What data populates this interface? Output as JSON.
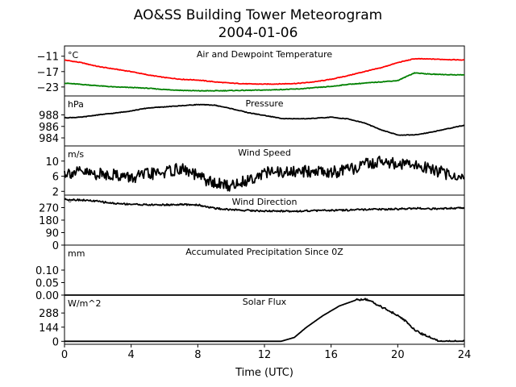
{
  "figure": {
    "title_line1": "AO&SS Building Tower Meteorogram",
    "title_line2": "2004-01-06",
    "xlabel": "Time (UTC)",
    "xticks": [
      "0",
      "4",
      "8",
      "12",
      "16",
      "20",
      "24"
    ]
  },
  "chart_data": [
    {
      "type": "line",
      "title": "Air and Dewpoint Temperature",
      "unit": "°C",
      "yticks": [
        "−11",
        "−17",
        "−23"
      ],
      "ylim": [
        -26.5,
        -7
      ],
      "x": [
        0,
        1,
        2,
        3,
        4,
        5,
        6,
        7,
        8,
        9,
        10,
        11,
        12,
        13,
        14,
        15,
        16,
        17,
        18,
        19,
        20,
        21,
        22,
        23,
        24
      ],
      "series": [
        {
          "color": "#ff0000",
          "values": [
            -12.5,
            -13.5,
            -15,
            -16,
            -17,
            -18.3,
            -19.3,
            -20,
            -20.3,
            -21,
            -21.5,
            -21.8,
            -21.9,
            -21.8,
            -21.6,
            -21,
            -20,
            -18.6,
            -17,
            -15.5,
            -13.5,
            -12,
            -12.1,
            -12.3,
            -12.5
          ]
        },
        {
          "color": "#008000",
          "values": [
            -21.5,
            -22,
            -22.5,
            -23,
            -23.2,
            -23.5,
            -24,
            -24.3,
            -24.5,
            -24.5,
            -24.4,
            -24.3,
            -24.2,
            -24,
            -23.8,
            -23.3,
            -22.8,
            -22,
            -21.5,
            -21,
            -20.5,
            -17.5,
            -18,
            -18.2,
            -18.3
          ]
        }
      ]
    },
    {
      "type": "line",
      "title": "Pressure",
      "unit": "hPa",
      "yticks": [
        "988",
        "986",
        "984"
      ],
      "ylim": [
        982.6,
        991.3
      ],
      "x": [
        0,
        1,
        2,
        3,
        4,
        5,
        6,
        7,
        8,
        9,
        10,
        11,
        12,
        13,
        14,
        15,
        16,
        17,
        18,
        19,
        20,
        21,
        22,
        23,
        24
      ],
      "series": [
        {
          "color": "#000000",
          "values": [
            987.5,
            987.6,
            988,
            988.3,
            988.7,
            989.2,
            989.4,
            989.6,
            989.8,
            989.7,
            989.1,
            988.4,
            987.9,
            987.4,
            987.3,
            987.4,
            987.6,
            987.3,
            986.6,
            985.4,
            984.5,
            984.5,
            985,
            985.6,
            986.2
          ]
        }
      ]
    },
    {
      "type": "line",
      "title": "Wind Speed",
      "unit": "m/s",
      "yticks": [
        "10",
        "6",
        "2"
      ],
      "ylim": [
        1,
        14
      ],
      "x": [
        0,
        1,
        2,
        3,
        4,
        5,
        6,
        7,
        8,
        9,
        10,
        11,
        12,
        13,
        14,
        15,
        16,
        17,
        18,
        19,
        20,
        21,
        22,
        23,
        24
      ],
      "series": [
        {
          "color": "#000000",
          "values": [
            7,
            7,
            6.5,
            6.5,
            5.5,
            6.5,
            7,
            8,
            6,
            4,
            3.5,
            5,
            7,
            7,
            7,
            7.5,
            7,
            7.5,
            9,
            10,
            9,
            9,
            8,
            6.5,
            5.5
          ]
        }
      ]
    },
    {
      "type": "line",
      "title": "Wind Direction",
      "unit": "°",
      "yticks": [
        "270",
        "180",
        "90",
        "0"
      ],
      "ylim": [
        0,
        360
      ],
      "x": [
        0,
        1,
        2,
        3,
        4,
        5,
        6,
        7,
        8,
        9,
        10,
        11,
        12,
        13,
        14,
        15,
        16,
        17,
        18,
        19,
        20,
        21,
        22,
        23,
        24
      ],
      "series": [
        {
          "color": "#000000",
          "values": [
            330,
            325,
            315,
            300,
            295,
            290,
            290,
            292,
            290,
            265,
            255,
            250,
            245,
            245,
            245,
            248,
            250,
            252,
            255,
            258,
            260,
            265,
            262,
            265,
            268
          ]
        }
      ]
    },
    {
      "type": "line",
      "title": "Accumulated Precipitation Since 0Z",
      "unit": "mm",
      "yticks": [
        "0.10",
        "0.05",
        "0.00"
      ],
      "ylim": [
        0,
        0.2
      ],
      "x": [
        0,
        24
      ],
      "series": [
        {
          "color": "#000000",
          "values": [
            0,
            0
          ]
        }
      ]
    },
    {
      "type": "line",
      "title": "Solar Flux",
      "unit": "W/m^2",
      "yticks": [
        "288",
        "144",
        "0"
      ],
      "ylim": [
        -30,
        470
      ],
      "x": [
        0,
        13,
        13.8,
        14.5,
        15.5,
        16.5,
        17.5,
        18,
        18.5,
        19,
        19.5,
        20,
        20.5,
        21,
        21.5,
        22,
        22.5,
        24
      ],
      "series": [
        {
          "color": "#000000",
          "values": [
            0,
            0,
            40,
            140,
            260,
            360,
            420,
            430,
            400,
            350,
            310,
            260,
            200,
            120,
            70,
            40,
            0,
            0
          ]
        }
      ]
    }
  ]
}
